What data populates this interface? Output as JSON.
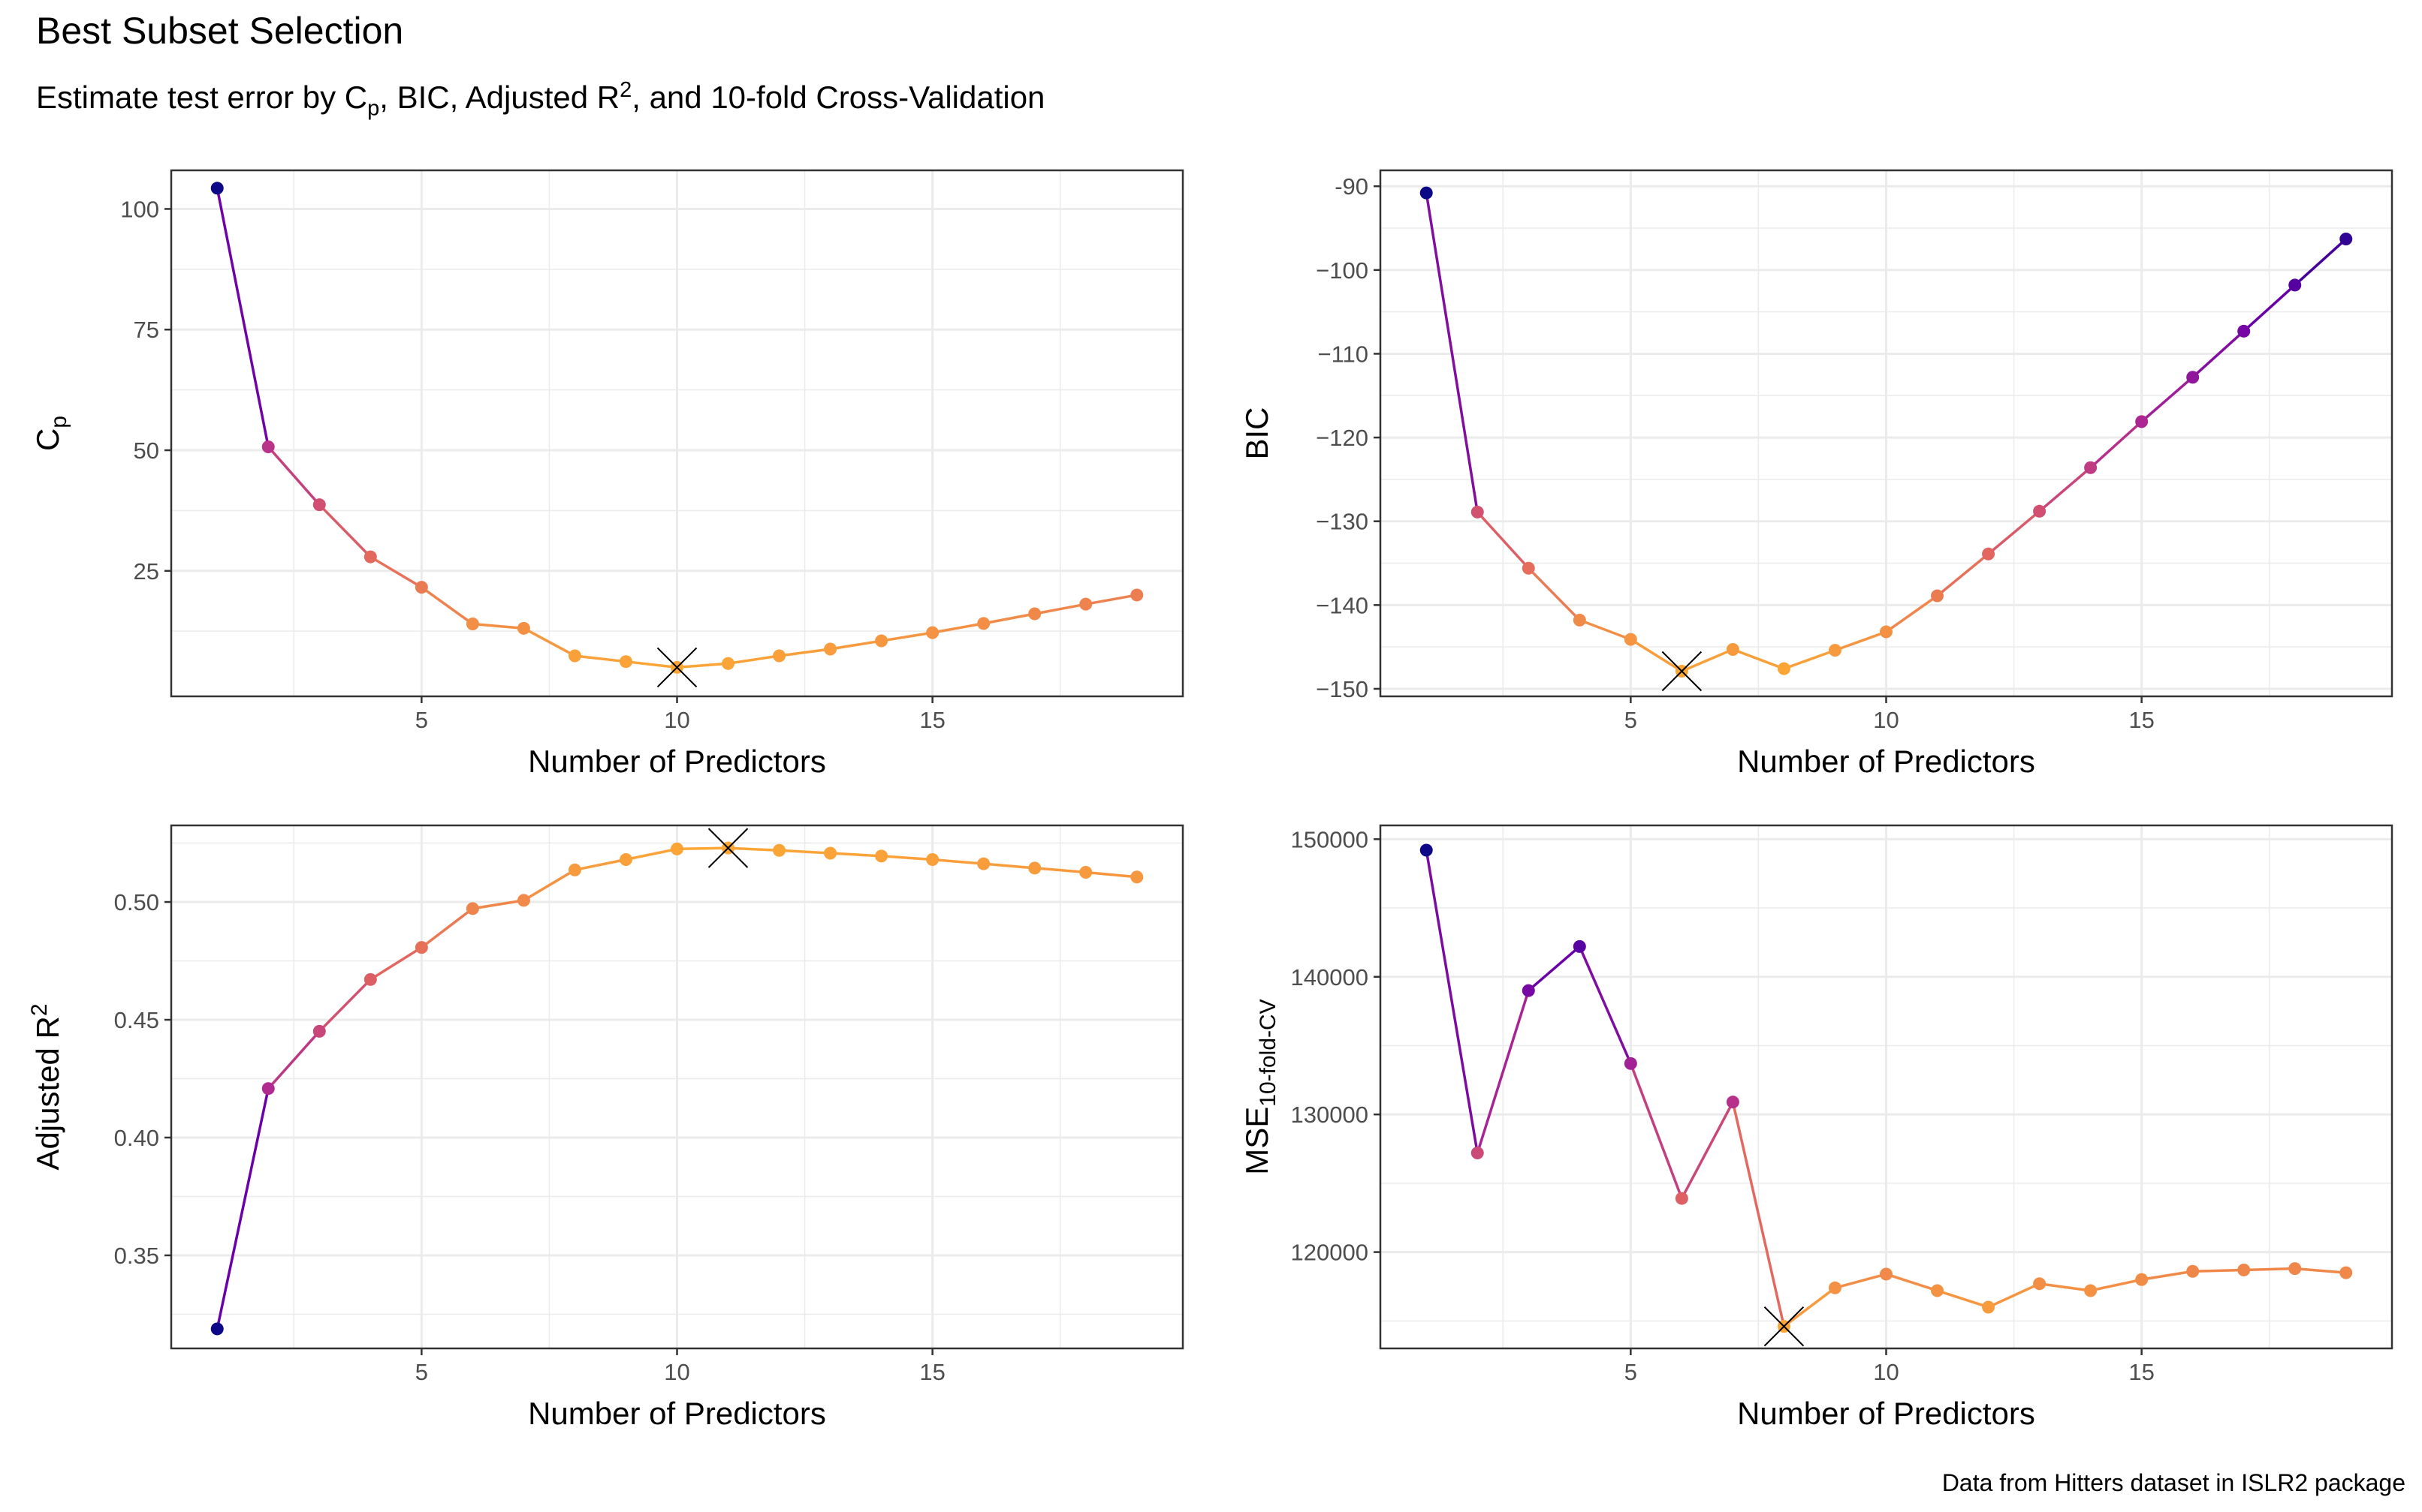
{
  "title": "Best Subset Selection",
  "subtitle": {
    "p1": "Estimate test error by C",
    "p1_sub": "p",
    "p2": ", BIC, Adjusted R",
    "p2_sup": "2",
    "p3": ", and 10-fold Cross-Validation"
  },
  "caption": "Data from Hitters dataset in ISLR2 package",
  "colors": {
    "gradient": [
      "#0d0887",
      "#6a00a8",
      "#b12a90",
      "#e16462",
      "#fca636"
    ],
    "marker": "#000000",
    "panel_border": "#333333",
    "grid": "#ebebeb"
  },
  "chart_data": [
    {
      "type": "line",
      "xlabel": "Number of Predictors",
      "ylabel": "C",
      "ylabel_sub": "p",
      "xlim": [
        0.1,
        19.9
      ],
      "ylim": [
        -1,
        108
      ],
      "xticks": [
        5,
        10,
        15
      ],
      "yticks": [
        25,
        50,
        75,
        100
      ],
      "ytick_labels": [
        "25",
        "50",
        "75",
        "100"
      ],
      "grid": true,
      "x": [
        1,
        2,
        3,
        4,
        5,
        6,
        7,
        8,
        9,
        10,
        11,
        12,
        13,
        14,
        15,
        16,
        17,
        18,
        19
      ],
      "y": [
        104.3,
        50.7,
        38.7,
        27.9,
        21.6,
        14.0,
        13.1,
        7.4,
        6.2,
        5.0,
        5.8,
        7.4,
        8.8,
        10.5,
        12.2,
        14.1,
        16.1,
        18.1,
        20.0
      ],
      "best": {
        "x": 10,
        "y": 5.0
      }
    },
    {
      "type": "line",
      "xlabel": "Number of Predictors",
      "ylabel": "BIC",
      "xlim": [
        0.1,
        19.9
      ],
      "ylim": [
        -150.9,
        -88.1
      ],
      "xticks": [
        5,
        10,
        15
      ],
      "yticks": [
        -150,
        -140,
        -130,
        -120,
        -110,
        -100,
        -90
      ],
      "ytick_labels": [
        "−150",
        "−140",
        "−130",
        "−120",
        "−110",
        "−100",
        "-90"
      ],
      "grid": true,
      "x": [
        1,
        2,
        3,
        4,
        5,
        6,
        7,
        8,
        9,
        10,
        11,
        12,
        13,
        14,
        15,
        16,
        17,
        18,
        19
      ],
      "y": [
        -90.8,
        -128.9,
        -135.6,
        -141.8,
        -144.1,
        -147.9,
        -145.3,
        -147.6,
        -145.4,
        -143.2,
        -138.9,
        -133.9,
        -128.8,
        -123.6,
        -118.1,
        -112.8,
        -107.3,
        -101.8,
        -96.3
      ],
      "best": {
        "x": 6,
        "y": -147.9
      }
    },
    {
      "type": "line",
      "xlabel": "Number of Predictors",
      "ylabel": "Adjusted R",
      "ylabel_sup": "2",
      "xlim": [
        0.1,
        19.9
      ],
      "ylim": [
        0.3105,
        0.5325
      ],
      "xticks": [
        5,
        10,
        15
      ],
      "yticks": [
        0.35,
        0.4,
        0.45,
        0.5
      ],
      "ytick_labels": [
        "0.35",
        "0.40",
        "0.45",
        "0.50"
      ],
      "grid": true,
      "x": [
        1,
        2,
        3,
        4,
        5,
        6,
        7,
        8,
        9,
        10,
        11,
        12,
        13,
        14,
        15,
        16,
        17,
        18,
        19
      ],
      "y": [
        0.3188,
        0.4208,
        0.4451,
        0.4671,
        0.4807,
        0.4972,
        0.5007,
        0.5136,
        0.518,
        0.5225,
        0.5229,
        0.5219,
        0.5207,
        0.5195,
        0.518,
        0.5162,
        0.5144,
        0.5126,
        0.5106
      ],
      "best": {
        "x": 11,
        "y": 0.5229
      }
    },
    {
      "type": "line",
      "xlabel": "Number of Predictors",
      "ylabel": "MSE",
      "ylabel_sub": "10-fold-CV",
      "xlim": [
        0.1,
        19.9
      ],
      "ylim": [
        113000,
        151000
      ],
      "xticks": [
        5,
        10,
        15
      ],
      "yticks": [
        120000,
        130000,
        140000,
        150000
      ],
      "ytick_labels": [
        "120000",
        "130000",
        "140000",
        "150000"
      ],
      "grid": true,
      "x": [
        1,
        2,
        3,
        4,
        5,
        6,
        7,
        8,
        9,
        10,
        11,
        12,
        13,
        14,
        15,
        16,
        17,
        18,
        19
      ],
      "y": [
        149200,
        127200,
        139000,
        142200,
        133700,
        123900,
        130900,
        114600,
        117400,
        118400,
        117200,
        116000,
        117700,
        117200,
        118000,
        118600,
        118700,
        118800,
        118500
      ],
      "best": {
        "x": 8,
        "y": 114600
      }
    }
  ]
}
